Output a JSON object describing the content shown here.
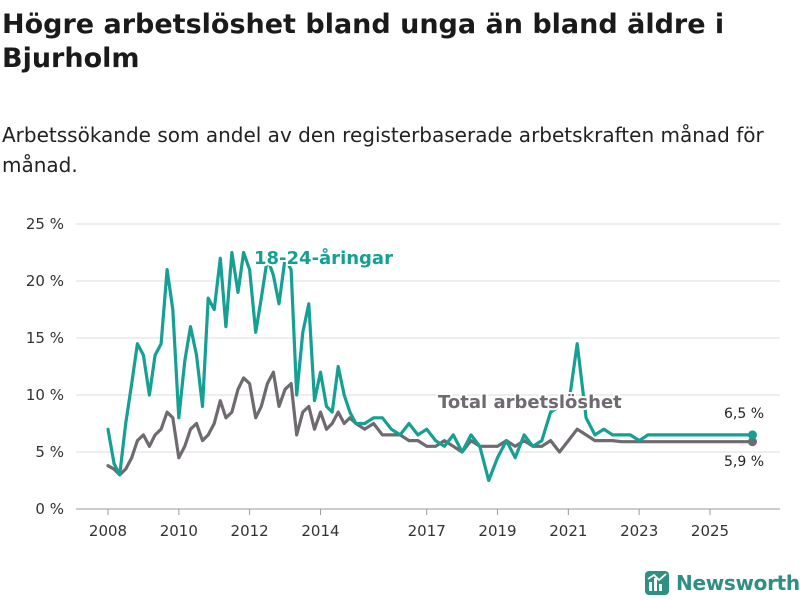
{
  "header": {
    "title": "Högre arbetslöshet bland unga än bland äldre i Bjurholm",
    "subtitle": "Arbetssökande som andel av den registerbaserade arbetskraften månad för månad."
  },
  "brand": {
    "name": "Newsworthy",
    "icon": "newsworthy-logo-icon",
    "color": "#2f8f83"
  },
  "chart_data": {
    "type": "line",
    "title": "Högre arbetslöshet bland unga än bland äldre i Bjurholm",
    "xlabel": "",
    "ylabel": "",
    "xlim": [
      2008.0,
      2026.6
    ],
    "ylim": [
      0,
      25
    ],
    "grid": true,
    "y_ticks": [
      0,
      5,
      10,
      15,
      20,
      25
    ],
    "y_tick_labels": [
      "0 %",
      "5 %",
      "10 %",
      "15 %",
      "20 %",
      "25 %"
    ],
    "x_ticks": [
      2008,
      2010,
      2012,
      2014,
      2017,
      2019,
      2021,
      2023,
      2025
    ],
    "x_tick_labels": [
      "2008",
      "2010",
      "2012",
      "2014",
      "2017",
      "2019",
      "2021",
      "2023",
      "2025"
    ],
    "series": [
      {
        "name": "18-24-åringar",
        "label": "18-24-åringar",
        "color": "#16a094",
        "end_label": "6,5 %",
        "x": [
          2008.0,
          2008.17,
          2008.33,
          2008.5,
          2008.67,
          2008.83,
          2009.0,
          2009.17,
          2009.33,
          2009.5,
          2009.67,
          2009.83,
          2010.0,
          2010.17,
          2010.33,
          2010.5,
          2010.67,
          2010.83,
          2011.0,
          2011.17,
          2011.33,
          2011.5,
          2011.67,
          2011.83,
          2012.0,
          2012.17,
          2012.33,
          2012.5,
          2012.67,
          2012.83,
          2013.0,
          2013.17,
          2013.33,
          2013.5,
          2013.67,
          2013.83,
          2014.0,
          2014.17,
          2014.33,
          2014.5,
          2014.67,
          2014.83,
          2015.0,
          2015.25,
          2015.5,
          2015.75,
          2016.0,
          2016.25,
          2016.5,
          2016.75,
          2017.0,
          2017.25,
          2017.5,
          2017.75,
          2018.0,
          2018.25,
          2018.5,
          2018.75,
          2019.0,
          2019.25,
          2019.5,
          2019.75,
          2020.0,
          2020.25,
          2020.5,
          2020.75,
          2021.0,
          2021.25,
          2021.5,
          2021.75,
          2022.0,
          2022.25,
          2022.5,
          2022.75,
          2023.0,
          2023.25,
          2023.5,
          2023.75,
          2024.0,
          2024.25,
          2024.5,
          2024.75,
          2025.0,
          2025.25,
          2025.5,
          2025.75,
          2026.0,
          2026.2
        ],
        "values": [
          7.0,
          4.0,
          3.0,
          7.5,
          11.0,
          14.5,
          13.5,
          10.0,
          13.5,
          14.5,
          21.0,
          17.5,
          8.0,
          13.0,
          16.0,
          13.5,
          9.0,
          18.5,
          17.5,
          22.0,
          16.0,
          22.5,
          19.0,
          22.5,
          21.0,
          15.5,
          18.5,
          22.0,
          20.5,
          18.0,
          22.0,
          21.0,
          10.0,
          15.5,
          18.0,
          9.5,
          12.0,
          9.0,
          8.5,
          12.5,
          10.0,
          8.5,
          7.5,
          7.5,
          8.0,
          8.0,
          7.0,
          6.5,
          7.5,
          6.5,
          7.0,
          6.0,
          5.5,
          6.5,
          5.0,
          6.5,
          5.5,
          2.5,
          4.5,
          6.0,
          4.5,
          6.5,
          5.5,
          6.0,
          8.5,
          9.0,
          9.0,
          14.5,
          8.0,
          6.5,
          7.0,
          6.5,
          6.5,
          6.5,
          6.0,
          6.5,
          6.5,
          6.5,
          6.5,
          6.5,
          6.5,
          6.5,
          6.5,
          6.5,
          6.5,
          6.5,
          6.5,
          6.5
        ]
      },
      {
        "name": "Total arbetslöshet",
        "label": "Total arbetslöshet",
        "color": "#6e6a70",
        "end_label": "5,9 %",
        "x": [
          2008.0,
          2008.17,
          2008.33,
          2008.5,
          2008.67,
          2008.83,
          2009.0,
          2009.17,
          2009.33,
          2009.5,
          2009.67,
          2009.83,
          2010.0,
          2010.17,
          2010.33,
          2010.5,
          2010.67,
          2010.83,
          2011.0,
          2011.17,
          2011.33,
          2011.5,
          2011.67,
          2011.83,
          2012.0,
          2012.17,
          2012.33,
          2012.5,
          2012.67,
          2012.83,
          2013.0,
          2013.17,
          2013.33,
          2013.5,
          2013.67,
          2013.83,
          2014.0,
          2014.17,
          2014.33,
          2014.5,
          2014.67,
          2014.83,
          2015.0,
          2015.25,
          2015.5,
          2015.75,
          2016.0,
          2016.25,
          2016.5,
          2016.75,
          2017.0,
          2017.25,
          2017.5,
          2017.75,
          2018.0,
          2018.25,
          2018.5,
          2018.75,
          2019.0,
          2019.25,
          2019.5,
          2019.75,
          2020.0,
          2020.25,
          2020.5,
          2020.75,
          2021.0,
          2021.25,
          2021.5,
          2021.75,
          2022.0,
          2022.25,
          2022.5,
          2022.75,
          2023.0,
          2023.25,
          2023.5,
          2023.75,
          2024.0,
          2024.25,
          2024.5,
          2024.75,
          2025.0,
          2025.25,
          2025.5,
          2025.75,
          2026.0,
          2026.2
        ],
        "values": [
          3.8,
          3.5,
          3.0,
          3.5,
          4.5,
          6.0,
          6.5,
          5.5,
          6.5,
          7.0,
          8.5,
          8.0,
          4.5,
          5.5,
          7.0,
          7.5,
          6.0,
          6.5,
          7.5,
          9.5,
          8.0,
          8.5,
          10.5,
          11.5,
          11.0,
          8.0,
          9.0,
          11.0,
          12.0,
          9.0,
          10.5,
          11.0,
          6.5,
          8.5,
          9.0,
          7.0,
          8.5,
          7.0,
          7.5,
          8.5,
          7.5,
          8.0,
          7.5,
          7.0,
          7.5,
          6.5,
          6.5,
          6.5,
          6.0,
          6.0,
          5.5,
          5.5,
          6.0,
          5.5,
          5.0,
          6.0,
          5.5,
          5.5,
          5.5,
          6.0,
          5.5,
          6.0,
          5.5,
          5.5,
          6.0,
          5.0,
          6.0,
          7.0,
          6.5,
          6.0,
          6.0,
          6.0,
          5.9,
          5.9,
          5.9,
          5.9,
          5.9,
          5.9,
          5.9,
          5.9,
          5.9,
          5.9,
          5.9,
          5.9,
          5.9,
          5.9,
          5.9,
          5.9
        ]
      }
    ]
  }
}
